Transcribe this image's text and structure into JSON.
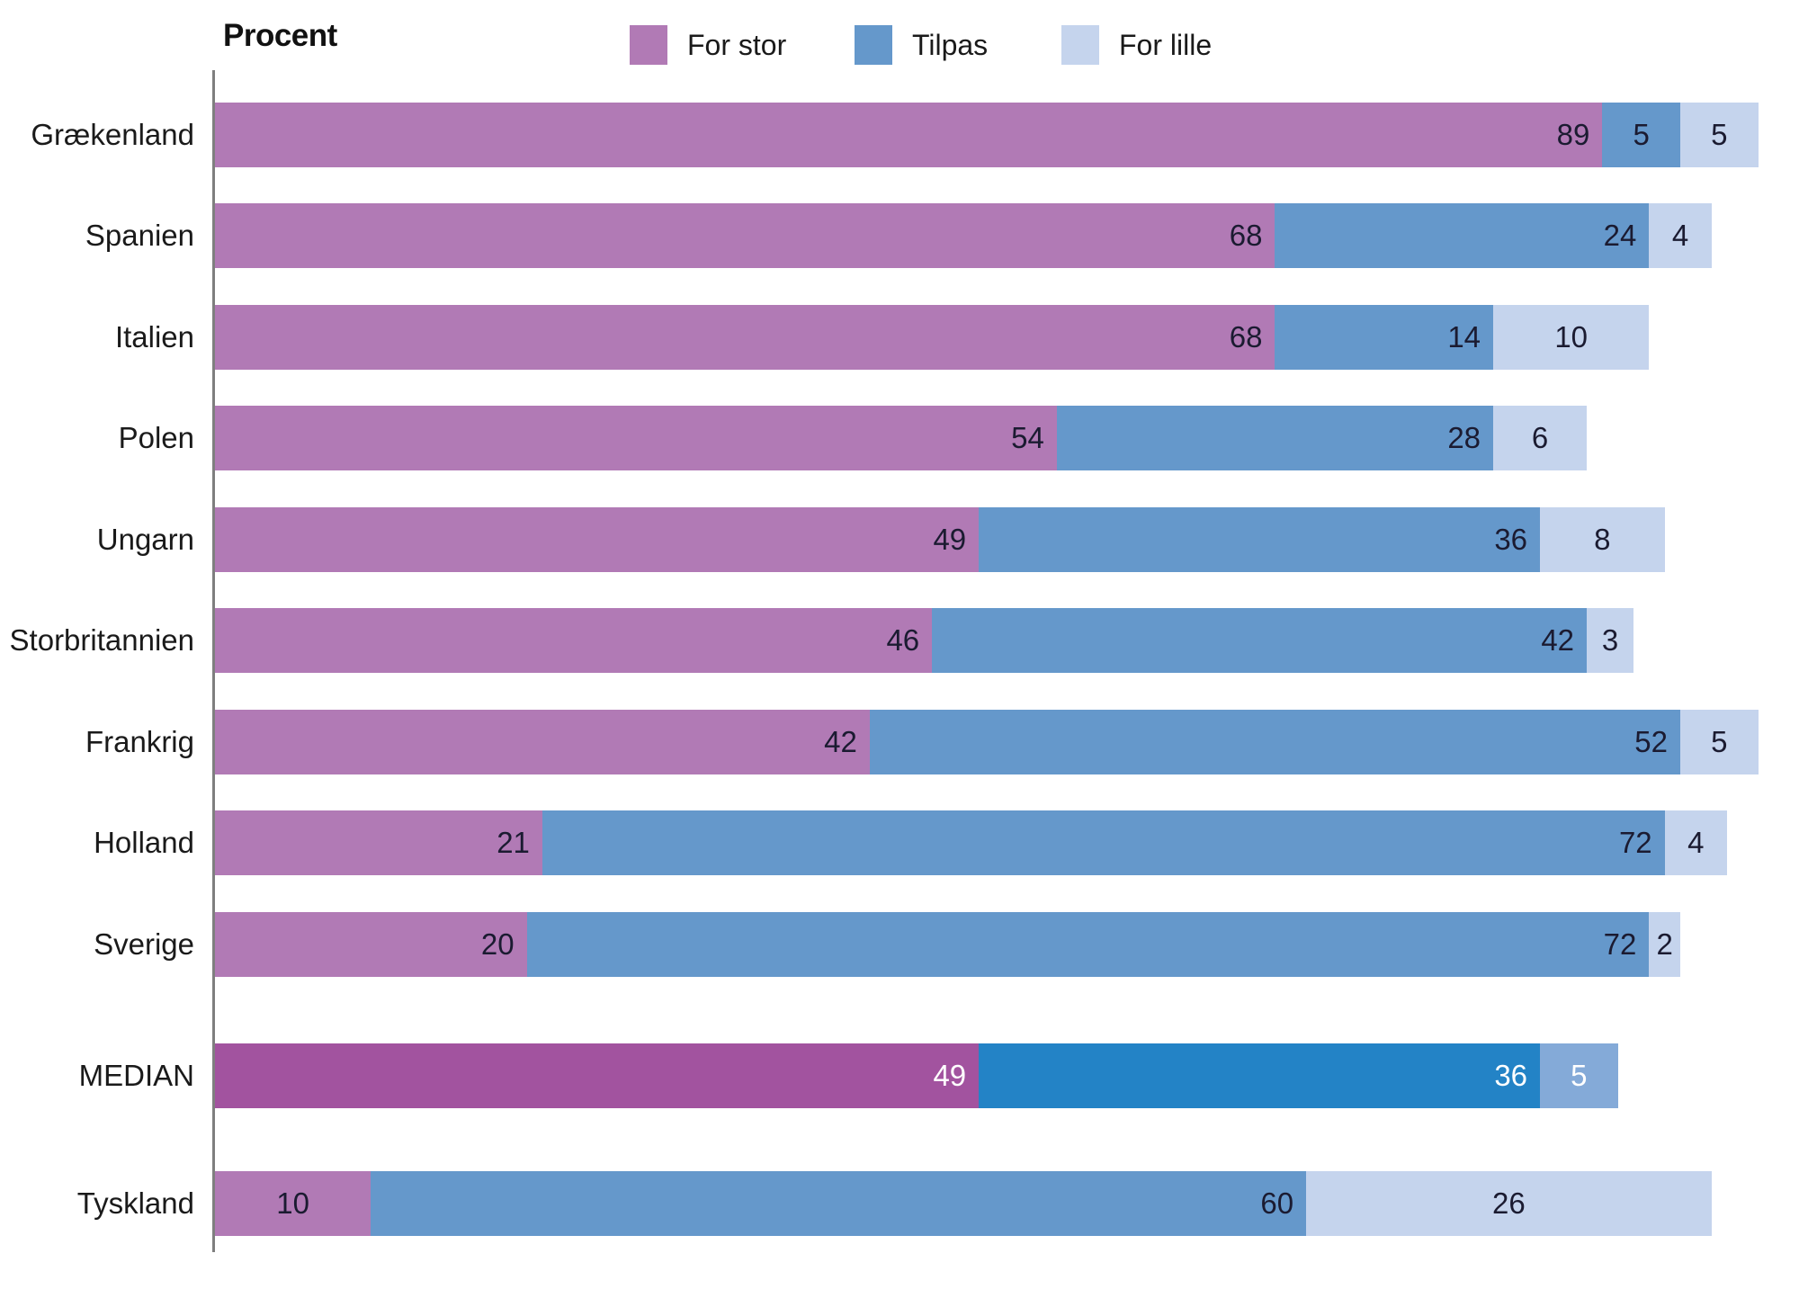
{
  "chart_data": {
    "type": "bar",
    "orientation": "horizontal",
    "stacked": true,
    "axis_title": "Procent",
    "xlim": [
      0,
      100
    ],
    "grid": false,
    "legend_position": "top",
    "categories": [
      "Grækenland",
      "Spanien",
      "Italien",
      "Polen",
      "Ungarn",
      "Storbritannien",
      "Frankrig",
      "Holland",
      "Sverige",
      "MEDIAN",
      "Tyskland"
    ],
    "series": [
      {
        "name": "For stor",
        "values": [
          89,
          68,
          68,
          54,
          49,
          46,
          42,
          21,
          20,
          49,
          10
        ]
      },
      {
        "name": "Tilpas",
        "values": [
          5,
          24,
          14,
          28,
          36,
          42,
          52,
          72,
          72,
          36,
          60
        ]
      },
      {
        "name": "For lille",
        "values": [
          5,
          4,
          10,
          6,
          8,
          3,
          5,
          4,
          2,
          5,
          26
        ]
      }
    ],
    "colors": [
      "#b17ab5",
      "#6598cb",
      "#c5d4ed"
    ],
    "emphasized_category": "MEDIAN",
    "emphasized_colors": [
      "#a2539f",
      "#2383c6",
      "#84aad8"
    ],
    "value_label_color": "#1b1b31",
    "emphasized_value_label_color": "#ffffff",
    "axis_line_color": "#7f7f7f"
  }
}
